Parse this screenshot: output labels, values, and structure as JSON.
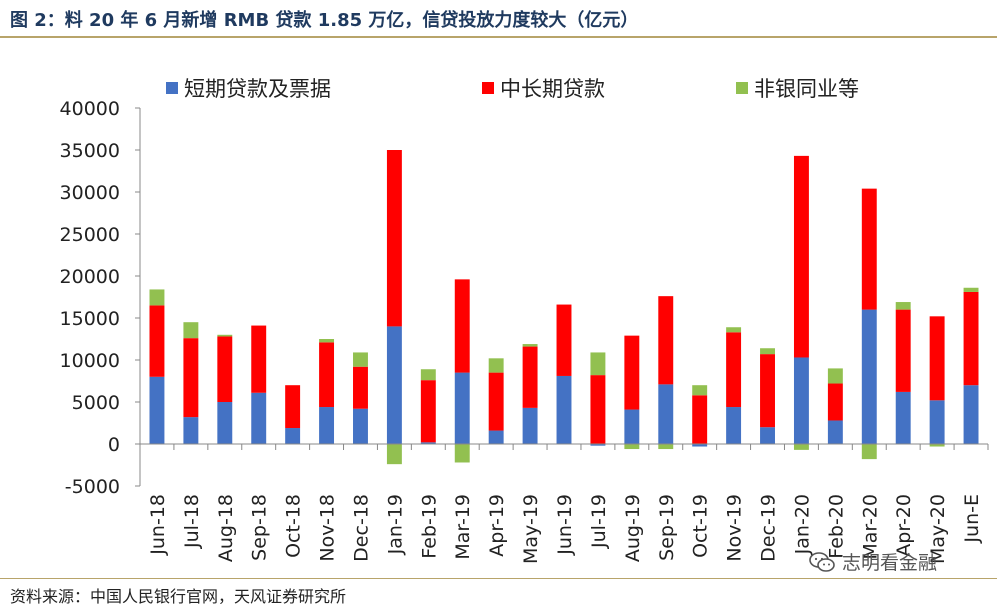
{
  "title": "图 2：料 20 年 6 月新增 RMB 贷款 1.85 万亿，信贷投放力度较大（亿元）",
  "source": "资料来源：中国人民银行官网，天风证券研究所",
  "watermark": "志明看金融",
  "colors": {
    "short": "#4472c4",
    "long": "#ff0000",
    "nonbank": "#92c050",
    "title": "#1f3a5f",
    "rule": "#b8a46a"
  },
  "chart_data": {
    "type": "bar",
    "stacked": true,
    "categories": [
      "Jun-18",
      "Jul-18",
      "Aug-18",
      "Sep-18",
      "Oct-18",
      "Nov-18",
      "Dec-18",
      "Jan-19",
      "Feb-19",
      "Mar-19",
      "Apr-19",
      "May-19",
      "Jun-19",
      "Jul-19",
      "Aug-19",
      "Sep-19",
      "Oct-19",
      "Nov-19",
      "Dec-19",
      "Jan-20",
      "Feb-20",
      "Mar-20",
      "Apr-20",
      "May-20",
      "Jun-E"
    ],
    "series": [
      {
        "name": "短期贷款及票据",
        "values": [
          8000,
          3200,
          5000,
          6100,
          1900,
          4400,
          4200,
          14000,
          200,
          8500,
          1600,
          4300,
          8100,
          -200,
          4100,
          7100,
          -300,
          4400,
          2000,
          10300,
          2800,
          16000,
          6200,
          5200,
          7000
        ]
      },
      {
        "name": "中长期贷款",
        "values": [
          8500,
          9400,
          7800,
          8000,
          5100,
          7700,
          5000,
          21000,
          7400,
          11100,
          6900,
          7300,
          8500,
          8200,
          8800,
          10500,
          5800,
          8900,
          8700,
          24000,
          4400,
          14400,
          9800,
          10000,
          11100
        ]
      },
      {
        "name": "非银同业等",
        "values": [
          1900,
          1900,
          200,
          0,
          0,
          400,
          1700,
          -2400,
          1300,
          -2200,
          1700,
          300,
          0,
          2700,
          -600,
          -600,
          1200,
          600,
          700,
          -700,
          1800,
          -1800,
          900,
          -300,
          500
        ]
      }
    ],
    "ylim": [
      -5000,
      40000
    ],
    "yticks": [
      -5000,
      0,
      5000,
      10000,
      15000,
      20000,
      25000,
      30000,
      35000,
      40000
    ],
    "legend": "top"
  }
}
